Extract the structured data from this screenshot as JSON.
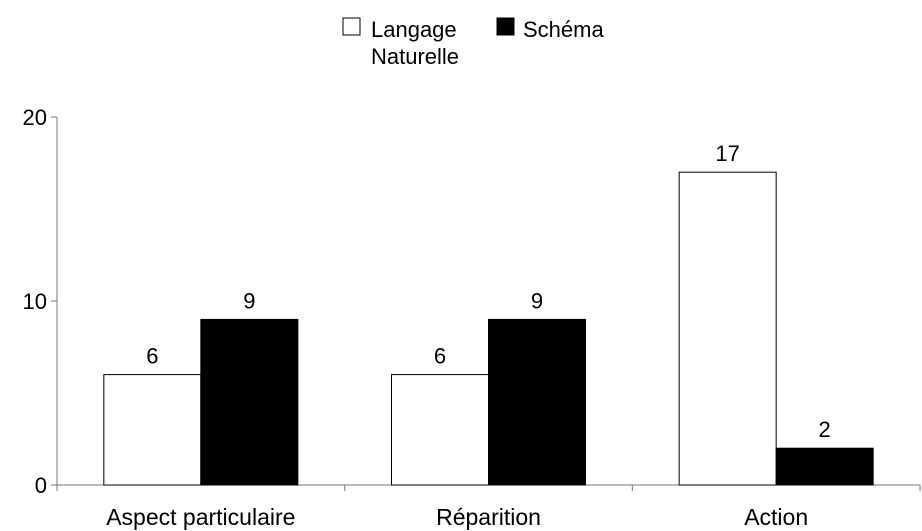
{
  "chart_data": {
    "type": "bar",
    "title": "",
    "xlabel": "",
    "ylabel": "",
    "categories": [
      "Aspect particulaire",
      "Réparition",
      "Action"
    ],
    "series": [
      {
        "name_lines": [
          "Langage",
          "Naturelle"
        ],
        "values": [
          6,
          6,
          17
        ],
        "color": "#ffffff"
      },
      {
        "name": "Schéma",
        "values": [
          9,
          9,
          2
        ],
        "color": "#000000"
      }
    ],
    "ylim": [
      0,
      20
    ],
    "yticks": [
      0,
      10,
      20
    ],
    "ytick_labels": [
      "0",
      "10",
      "20"
    ],
    "data_labels": [
      [
        "6",
        "6",
        "17"
      ],
      [
        "9",
        "9",
        "2"
      ]
    ],
    "grid": false,
    "legend_position": "top-center"
  }
}
